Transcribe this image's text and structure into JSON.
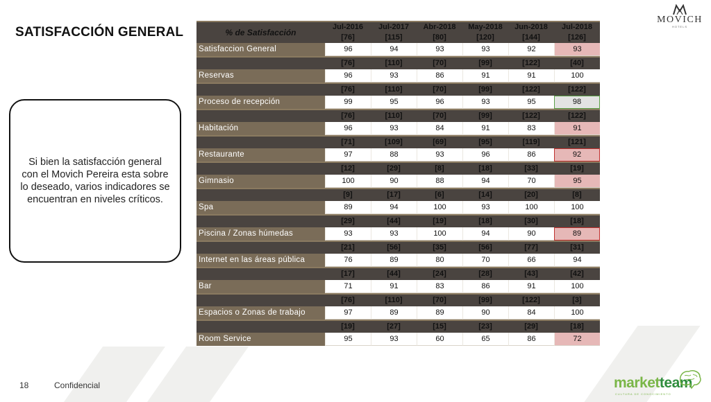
{
  "page": {
    "title": "SATISFACCIÓN GENERAL",
    "page_number": "18",
    "footer_label": "Confidencial"
  },
  "callout": {
    "text": "Si bien la satisfacción general con el Movich Pereira esta sobre lo deseado, varios indicadores se encuentran en niveles críticos."
  },
  "logo": {
    "brand": "MOVICH",
    "sub": "HOTELS"
  },
  "footer_logo": {
    "name_a": "market",
    "name_b": "team",
    "tagline": "CULTURA DE CONOCIMIENTO"
  },
  "table": {
    "header_label": "% de Satisfacción",
    "periods": [
      {
        "date": "Jul-2016",
        "n": "[76]"
      },
      {
        "date": "Jul-2017",
        "n": "[115]"
      },
      {
        "date": "Abr-2018",
        "n": "[80]"
      },
      {
        "date": "May-2018",
        "n": "[120]"
      },
      {
        "date": "Jun-2018",
        "n": "[144]"
      },
      {
        "date": "Jul-2018",
        "n": "[126]"
      }
    ],
    "rows": [
      {
        "name": "Satisfaccion General",
        "counts": null,
        "values": [
          "96",
          "94",
          "93",
          "93",
          "92",
          "93"
        ],
        "last_status": "red"
      },
      {
        "name": "Reservas",
        "counts": [
          "[76]",
          "[110]",
          "[70]",
          "[99]",
          "[122]",
          "[40]"
        ],
        "values": [
          "96",
          "93",
          "86",
          "91",
          "91",
          "100"
        ],
        "last_status": "green"
      },
      {
        "name": "Proceso de recepción",
        "counts": [
          "[76]",
          "[110]",
          "[70]",
          "[99]",
          "[122]",
          "[122]"
        ],
        "values": [
          "99",
          "95",
          "96",
          "93",
          "95",
          "98"
        ],
        "last_status": "grey"
      },
      {
        "name": "Habitación",
        "counts": [
          "[76]",
          "[110]",
          "[70]",
          "[99]",
          "[122]",
          "[122]"
        ],
        "values": [
          "96",
          "93",
          "84",
          "91",
          "83",
          "91"
        ],
        "last_status": "red"
      },
      {
        "name": "Restaurante",
        "counts": [
          "[71]",
          "[109]",
          "[69]",
          "[95]",
          "[119]",
          "[121]"
        ],
        "values": [
          "97",
          "88",
          "93",
          "96",
          "86",
          "92"
        ],
        "last_status": "redb"
      },
      {
        "name": "Gimnasio",
        "counts": [
          "[12]",
          "[29]",
          "[8]",
          "[18]",
          "[33]",
          "[19]"
        ],
        "values": [
          "100",
          "90",
          "88",
          "94",
          "70",
          "95"
        ],
        "last_status": "red"
      },
      {
        "name": "Spa",
        "counts": [
          "[9]",
          "[17]",
          "[6]",
          "[14]",
          "[20]",
          "[8]"
        ],
        "values": [
          "89",
          "94",
          "100",
          "93",
          "100",
          "100"
        ],
        "last_status": "green"
      },
      {
        "name": "Piscina / Zonas húmedas",
        "counts": [
          "[29]",
          "[44]",
          "[19]",
          "[18]",
          "[30]",
          "[18]"
        ],
        "values": [
          "93",
          "93",
          "100",
          "94",
          "90",
          "89"
        ],
        "last_status": "redb"
      },
      {
        "name": "Internet en las áreas pública",
        "counts": [
          "[21]",
          "[56]",
          "[35]",
          "[56]",
          "[77]",
          "[31]"
        ],
        "values": [
          "76",
          "89",
          "80",
          "70",
          "66",
          "94"
        ],
        "last_status": "green"
      },
      {
        "name": "Bar",
        "counts": [
          "[17]",
          "[44]",
          "[24]",
          "[28]",
          "[43]",
          "[42]"
        ],
        "values": [
          "71",
          "91",
          "83",
          "86",
          "91",
          "100"
        ],
        "last_status": "green"
      },
      {
        "name": "Espacios o Zonas de trabajo",
        "counts": [
          "[76]",
          "[110]",
          "[70]",
          "[99]",
          "[122]",
          "[3]"
        ],
        "values": [
          "97",
          "89",
          "89",
          "90",
          "84",
          "100"
        ],
        "last_status": "green"
      },
      {
        "name": "Room Service",
        "counts": [
          "[19]",
          "[27]",
          "[15]",
          "[23]",
          "[29]",
          "[18]"
        ],
        "values": [
          "95",
          "93",
          "60",
          "65",
          "86",
          "72"
        ],
        "last_status": "red"
      }
    ]
  },
  "colors": {
    "header_bg": "#4a4440",
    "name_bg": "#7a6c58",
    "critical": "#e6b8b7",
    "critical_border": "#c0302e",
    "ok_border": "#5aa046"
  }
}
